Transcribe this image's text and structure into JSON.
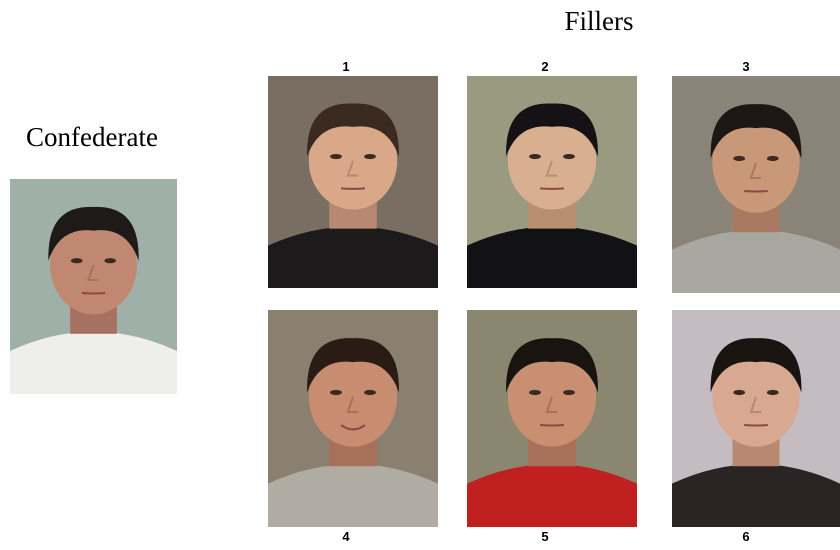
{
  "confederate": {
    "label": "Confederate"
  },
  "fillers": {
    "title": "Fillers",
    "photos": [
      {
        "label": "1"
      },
      {
        "label": "2"
      },
      {
        "label": "3"
      },
      {
        "label": "4"
      },
      {
        "label": "5"
      },
      {
        "label": "6"
      }
    ]
  }
}
